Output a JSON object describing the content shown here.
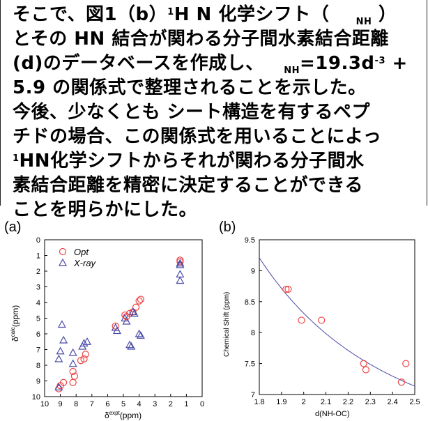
{
  "paragraph": {
    "l1_a": "そこで、図1（b）",
    "l1_sup": "1",
    "l1_b": "H N 化学シフト（",
    "l1_sub": "NH",
    "l1_c": "）",
    "l2": "とその HN 結合が関わる分子間水素結合距離",
    "l3_a": "(d)のデータベースを作成し、",
    "l3_sub": "NH",
    "l3_b": "=19.3d",
    "l3_sup": "-3",
    "l3_c": " +",
    "l4": "5.9 の関係式で整理されることを示した。",
    "l5": "今後、少なくとも シート構造を有するペプ",
    "l6": "チドの場合、この関係式を用いることによっ",
    "l7_sup": "1",
    "l7": "HN化学シフトからそれが関わる分子間水",
    "l8": "素結合距離を精密に決定することができる",
    "l9": "ことを明らかにした。"
  },
  "chart_data": [
    {
      "type": "scatter",
      "panel_label": "(a)",
      "xlabel": "δexpt (ppm)",
      "xlabel_main": "δ",
      "xlabel_sup": "expt",
      "xlabel_unit": "(ppm)",
      "ylabel_main": "δ",
      "ylabel_sup": "calc",
      "ylabel_unit": "(ppm)",
      "xlim": [
        10,
        0
      ],
      "ylim": [
        10,
        0
      ],
      "xticks": [
        "10",
        "9",
        "8",
        "7",
        "6",
        "5",
        "4",
        "3",
        "2",
        "1",
        "0"
      ],
      "yticks": [
        "0",
        "1",
        "2",
        "3",
        "4",
        "5",
        "6",
        "7",
        "8",
        "9",
        "10"
      ],
      "legend_position": "top-left",
      "series": [
        {
          "name": "Opt",
          "marker": "circle",
          "color": "#ee4444",
          "x": [
            9.1,
            9.0,
            8.8,
            8.2,
            8.2,
            8.1,
            7.7,
            7.5,
            7.4,
            5.5,
            4.9,
            4.8,
            4.6,
            4.4,
            4.2,
            4.0,
            3.9,
            1.4,
            1.4
          ],
          "y": [
            9.5,
            9.3,
            9.1,
            9.1,
            8.4,
            8.7,
            7.7,
            7.6,
            7.3,
            5.5,
            4.8,
            4.9,
            4.7,
            4.6,
            4.3,
            3.9,
            3.8,
            1.4,
            1.3
          ]
        },
        {
          "name": "X-ray",
          "marker": "triangle",
          "color": "#4a4aa8",
          "x": [
            9.1,
            9.1,
            9.0,
            8.9,
            8.8,
            8.2,
            8.2,
            7.6,
            7.5,
            7.3,
            5.5,
            5.4,
            4.9,
            4.8,
            4.6,
            4.5,
            4.4,
            4.3,
            4.0,
            3.9,
            1.4,
            1.4,
            1.4,
            1.4
          ],
          "y": [
            9.4,
            7.6,
            7.1,
            5.4,
            6.4,
            7.2,
            7.9,
            6.8,
            6.6,
            6.5,
            5.6,
            5.8,
            5.0,
            5.2,
            6.7,
            6.8,
            4.6,
            4.7,
            6.0,
            6.1,
            1.5,
            1.6,
            2.2,
            2.6
          ]
        }
      ]
    },
    {
      "type": "scatter",
      "panel_label": "(b)",
      "xlabel": "d(NH-OC)",
      "ylabel": "Chemical Shift (ppm)",
      "xlim": [
        1.8,
        2.5
      ],
      "ylim": [
        7,
        9.5
      ],
      "xticks": [
        "1.8",
        "1.9",
        "2",
        "2.1",
        "2.2",
        "2.3",
        "2.4",
        "2.5"
      ],
      "yticks": [
        "7",
        "7.5",
        "8",
        "8.5",
        "9",
        "9.5"
      ],
      "fit": {
        "equation": "19.3 d^-3 + 5.9",
        "a": 19.3,
        "b": 5.9,
        "color": "#4a4aa8"
      },
      "series": [
        {
          "marker": "circle",
          "color": "#ee4444",
          "x": [
            1.92,
            1.93,
            1.99,
            2.08,
            2.27,
            2.28,
            2.44,
            2.46
          ],
          "y": [
            8.7,
            8.7,
            8.2,
            8.2,
            7.5,
            7.4,
            7.2,
            7.5
          ]
        }
      ]
    }
  ]
}
